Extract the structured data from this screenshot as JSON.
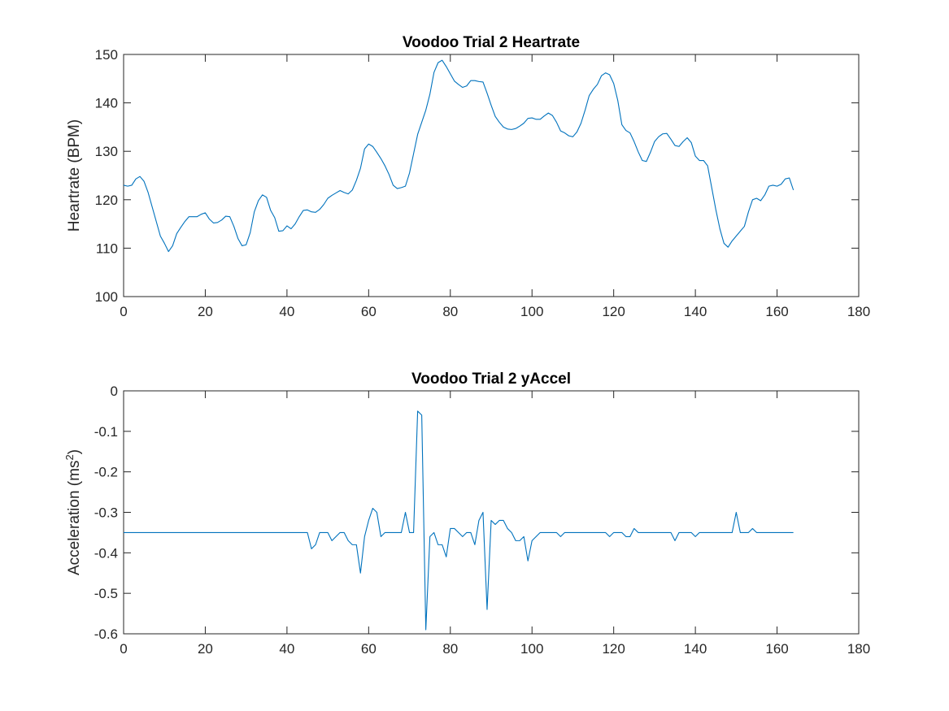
{
  "chart_data": [
    {
      "type": "line",
      "title": "Voodoo Trial 2 Heartrate",
      "xlabel": "",
      "ylabel": "Heartrate (BPM)",
      "xlim": [
        0,
        180
      ],
      "ylim": [
        100,
        150
      ],
      "xticks": [
        0,
        20,
        40,
        60,
        80,
        100,
        120,
        140,
        160,
        180
      ],
      "yticks": [
        100,
        110,
        120,
        130,
        140,
        150
      ],
      "grid": false,
      "color": "#0072bd",
      "series": [
        {
          "x": [
            0,
            1,
            2,
            3,
            4,
            5,
            6,
            7,
            8,
            9,
            10,
            11,
            12,
            13,
            14,
            15,
            16,
            17,
            18,
            19,
            20,
            21,
            22,
            23,
            24,
            25,
            26,
            27,
            28,
            29,
            30,
            31,
            32,
            33,
            34,
            35,
            36,
            37,
            38,
            39,
            40,
            41,
            42,
            43,
            44,
            45,
            46,
            47,
            48,
            49,
            50,
            51,
            52,
            53,
            54,
            55,
            56,
            57,
            58,
            59,
            60,
            61,
            62,
            63,
            64,
            65,
            66,
            67,
            68,
            69,
            70,
            71,
            72,
            73,
            74,
            75,
            76,
            77,
            78,
            79,
            80,
            81,
            82,
            83,
            84,
            85,
            86,
            87,
            88,
            89,
            90,
            91,
            92,
            93,
            94,
            95,
            96,
            97,
            98,
            99,
            100,
            101,
            102,
            103,
            104,
            105,
            106,
            107,
            108,
            109,
            110,
            111,
            112,
            113,
            114,
            115,
            116,
            117,
            118,
            119,
            120,
            121,
            122,
            123,
            124,
            125,
            126,
            127,
            128,
            129,
            130,
            131,
            132,
            133,
            134,
            135,
            136,
            137,
            138,
            139,
            140,
            141,
            142,
            143,
            144,
            145,
            146,
            147,
            148,
            149,
            150,
            151,
            152,
            153,
            154,
            155,
            156,
            157,
            158,
            159,
            160,
            161,
            162,
            163,
            164
          ],
          "values": [
            123,
            122.8,
            123,
            124.3,
            124.8,
            123.8,
            121.5,
            118.5,
            115.5,
            112.5,
            111,
            109.3,
            110.5,
            113,
            114.3,
            115.5,
            116.5,
            116.5,
            116.5,
            117,
            117.3,
            116,
            115.2,
            115.3,
            115.8,
            116.6,
            116.5,
            114.5,
            112,
            110.5,
            110.7,
            113.2,
            117.5,
            119.8,
            121,
            120.5,
            117.8,
            116.3,
            113.5,
            113.6,
            114.6,
            114,
            115,
            116.5,
            117.8,
            117.9,
            117.5,
            117.4,
            118,
            119,
            120.3,
            120.9,
            121.4,
            121.9,
            121.5,
            121.2,
            122,
            124,
            126.5,
            130.5,
            131.5,
            131,
            129.8,
            128.5,
            127,
            125.2,
            123,
            122.3,
            122.5,
            122.8,
            125.5,
            129.5,
            133.5,
            136,
            138.5,
            141.8,
            146.3,
            148.3,
            148.8,
            147.5,
            146,
            144.5,
            143.8,
            143.2,
            143.5,
            144.6,
            144.6,
            144.4,
            144.3,
            142,
            139.5,
            137.2,
            136,
            135,
            134.6,
            134.5,
            134.7,
            135.2,
            135.8,
            136.8,
            136.9,
            136.6,
            136.6,
            137.3,
            137.9,
            137.4,
            136,
            134.2,
            133.8,
            133.2,
            133,
            134,
            135.8,
            138.5,
            141.5,
            142.8,
            143.8,
            145.6,
            146.2,
            145.8,
            144,
            140.5,
            135.5,
            134.3,
            133.8,
            132,
            129.9,
            128.1,
            127.9,
            129.8,
            132,
            133,
            133.6,
            133.7,
            132.5,
            131.2,
            131,
            132,
            132.8,
            131.8,
            129,
            128.1,
            128.1,
            127,
            122.5,
            118,
            114,
            111,
            110.2,
            111.5,
            112.5,
            113.5,
            114.5,
            117.5,
            120,
            120.3,
            119.8,
            121,
            122.8,
            123,
            122.8,
            123.2,
            124.3,
            124.5,
            122
          ]
        }
      ]
    },
    {
      "type": "line",
      "title": "Voodoo Trial 2 yAccel",
      "xlabel": "",
      "ylabel": "Acceleration (ms^2)",
      "xlim": [
        0,
        180
      ],
      "ylim": [
        -0.6,
        0
      ],
      "xticks": [
        0,
        20,
        40,
        60,
        80,
        100,
        120,
        140,
        160,
        180
      ],
      "yticks": [
        -0.6,
        -0.5,
        -0.4,
        -0.3,
        -0.2,
        -0.1,
        0
      ],
      "grid": false,
      "color": "#0072bd",
      "series": [
        {
          "x": [
            0,
            45,
            46,
            47,
            48,
            49,
            50,
            51,
            52,
            53,
            54,
            55,
            56,
            57,
            58,
            59,
            60,
            61,
            62,
            63,
            64,
            65,
            66,
            67,
            68,
            69,
            70,
            71,
            72,
            73,
            74,
            75,
            76,
            77,
            78,
            79,
            80,
            81,
            82,
            83,
            84,
            85,
            86,
            87,
            88,
            89,
            90,
            91,
            92,
            93,
            94,
            95,
            96,
            97,
            98,
            99,
            100,
            101,
            102,
            103,
            104,
            105,
            106,
            107,
            108,
            109,
            110,
            118,
            119,
            120,
            121,
            122,
            123,
            124,
            125,
            126,
            127,
            134,
            135,
            136,
            137,
            138,
            139,
            140,
            141,
            148,
            149,
            150,
            151,
            152,
            153,
            154,
            155,
            164
          ],
          "values": [
            -0.35,
            -0.35,
            -0.39,
            -0.38,
            -0.35,
            -0.35,
            -0.35,
            -0.37,
            -0.36,
            -0.35,
            -0.35,
            -0.37,
            -0.38,
            -0.38,
            -0.45,
            -0.36,
            -0.32,
            -0.29,
            -0.3,
            -0.36,
            -0.35,
            -0.35,
            -0.35,
            -0.35,
            -0.35,
            -0.3,
            -0.35,
            -0.35,
            -0.05,
            -0.06,
            -0.59,
            -0.36,
            -0.35,
            -0.38,
            -0.38,
            -0.41,
            -0.34,
            -0.34,
            -0.35,
            -0.36,
            -0.35,
            -0.35,
            -0.38,
            -0.32,
            -0.3,
            -0.54,
            -0.32,
            -0.33,
            -0.32,
            -0.32,
            -0.34,
            -0.35,
            -0.37,
            -0.37,
            -0.36,
            -0.42,
            -0.37,
            -0.36,
            -0.35,
            -0.35,
            -0.35,
            -0.35,
            -0.35,
            -0.36,
            -0.35,
            -0.35,
            -0.35,
            -0.35,
            -0.36,
            -0.35,
            -0.35,
            -0.35,
            -0.36,
            -0.36,
            -0.34,
            -0.35,
            -0.35,
            -0.35,
            -0.37,
            -0.35,
            -0.35,
            -0.35,
            -0.35,
            -0.36,
            -0.35,
            -0.35,
            -0.35,
            -0.3,
            -0.35,
            -0.35,
            -0.35,
            -0.34,
            -0.35,
            -0.35
          ]
        }
      ]
    }
  ]
}
